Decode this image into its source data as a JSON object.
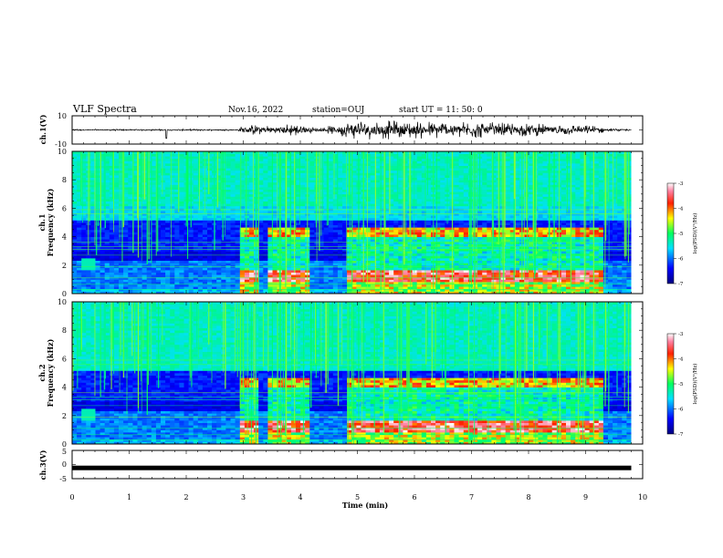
{
  "header": {
    "title": "VLF Spectra",
    "date": "Nov.16, 2022",
    "station": "station=OUJ",
    "start": "start UT =  11: 50: 0"
  },
  "chart_data": [
    {
      "type": "line",
      "panel": "ch1-waveform",
      "ylabel": "ch.1(V)",
      "ylim": [
        -10,
        10
      ],
      "yticks": [
        "10",
        "-10"
      ],
      "xlim": [
        0,
        10
      ],
      "baseline": 0,
      "amplitude_envelope": [
        {
          "t": 0.0,
          "amp": 0.6
        },
        {
          "t": 2.9,
          "amp": 0.6
        },
        {
          "t": 3.0,
          "amp": 3.5
        },
        {
          "t": 4.0,
          "amp": 4.5
        },
        {
          "t": 4.3,
          "amp": 1.2
        },
        {
          "t": 5.0,
          "amp": 7.0
        },
        {
          "t": 7.0,
          "amp": 6.0
        },
        {
          "t": 9.2,
          "amp": 3.0
        },
        {
          "t": 9.4,
          "amp": 1.0
        },
        {
          "t": 9.8,
          "amp": 0.7
        }
      ]
    },
    {
      "type": "heatmap",
      "panel": "ch1-spectrogram",
      "ylabel": "ch.1\nFrequency (kHz)",
      "ylim": [
        0,
        10
      ],
      "yticks": [
        "0",
        "2",
        "4",
        "6",
        "8",
        "10"
      ],
      "xlim": [
        0,
        10
      ],
      "colorbar": {
        "label": "log(PSD)(V²/Hz)",
        "range": [
          -7,
          -3
        ],
        "ticks": [
          "-3",
          "-4",
          "-5",
          "-6",
          "-7"
        ]
      }
    },
    {
      "type": "heatmap",
      "panel": "ch2-spectrogram",
      "ylabel": "ch.2\nFrequency (kHz)",
      "ylim": [
        0,
        10
      ],
      "yticks": [
        "0",
        "2",
        "4",
        "6",
        "8",
        "10"
      ],
      "xlim": [
        0,
        10
      ],
      "colorbar": {
        "label": "log(PSD)(V²/Hz)",
        "range": [
          -7,
          -3
        ],
        "ticks": [
          "-3",
          "-4",
          "-5",
          "-6",
          "-7"
        ]
      }
    },
    {
      "type": "line",
      "panel": "ch3-waveform",
      "ylabel": "ch.3(V)",
      "ylim": [
        -5,
        5
      ],
      "yticks": [
        "5",
        "0",
        "-5"
      ],
      "xlim": [
        0,
        10
      ],
      "value": -1.2
    }
  ],
  "xaxis": {
    "label": "Time (min)",
    "ticks": [
      "0",
      "1",
      "2",
      "3",
      "4",
      "5",
      "6",
      "7",
      "8",
      "9",
      "10"
    ]
  },
  "spectrogram_features": {
    "data_end_min": 9.8,
    "active_intervals_min": [
      [
        2.9,
        3.3
      ],
      [
        3.45,
        4.2
      ],
      [
        4.8,
        9.35
      ]
    ],
    "bright_band_khz": [
      0.9,
      1.6
    ],
    "emission_band_khz": [
      4.0,
      4.6
    ],
    "blob": {
      "t_min": 0.32,
      "f_khz": 2.1
    },
    "colors": {
      "low": "#00008f",
      "mid": "#00e0b0",
      "high": "#ff2000",
      "max": "#ffffff"
    }
  }
}
